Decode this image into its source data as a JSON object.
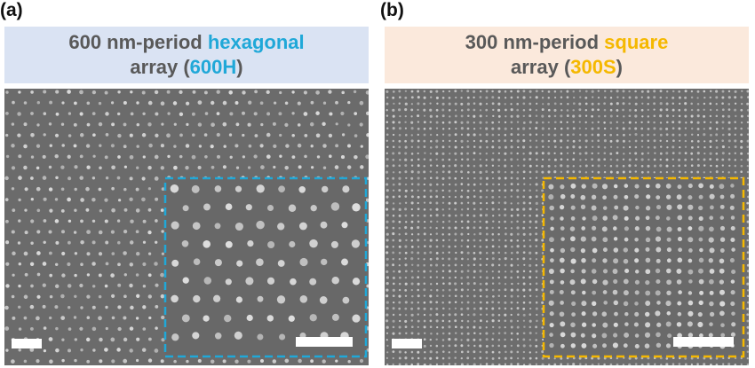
{
  "panels": [
    {
      "label": "(a)",
      "title_line1_prefix": "600 nm-period ",
      "title_line1_accent": "hexagonal",
      "title_line2_prefix": "array (",
      "title_line2_accent": "600H",
      "title_line2_suffix": ")",
      "accent_color": "#20a8d8",
      "header_bg": "#dae3f3",
      "lattice": "hexagonal"
    },
    {
      "label": "(b)",
      "title_line1_prefix": "300 nm-period ",
      "title_line1_accent": "square",
      "title_line2_prefix": "array (",
      "title_line2_accent": "300S",
      "title_line2_suffix": ")",
      "accent_color": "#f5b800",
      "header_bg": "#fbe9dc",
      "lattice": "square"
    }
  ]
}
